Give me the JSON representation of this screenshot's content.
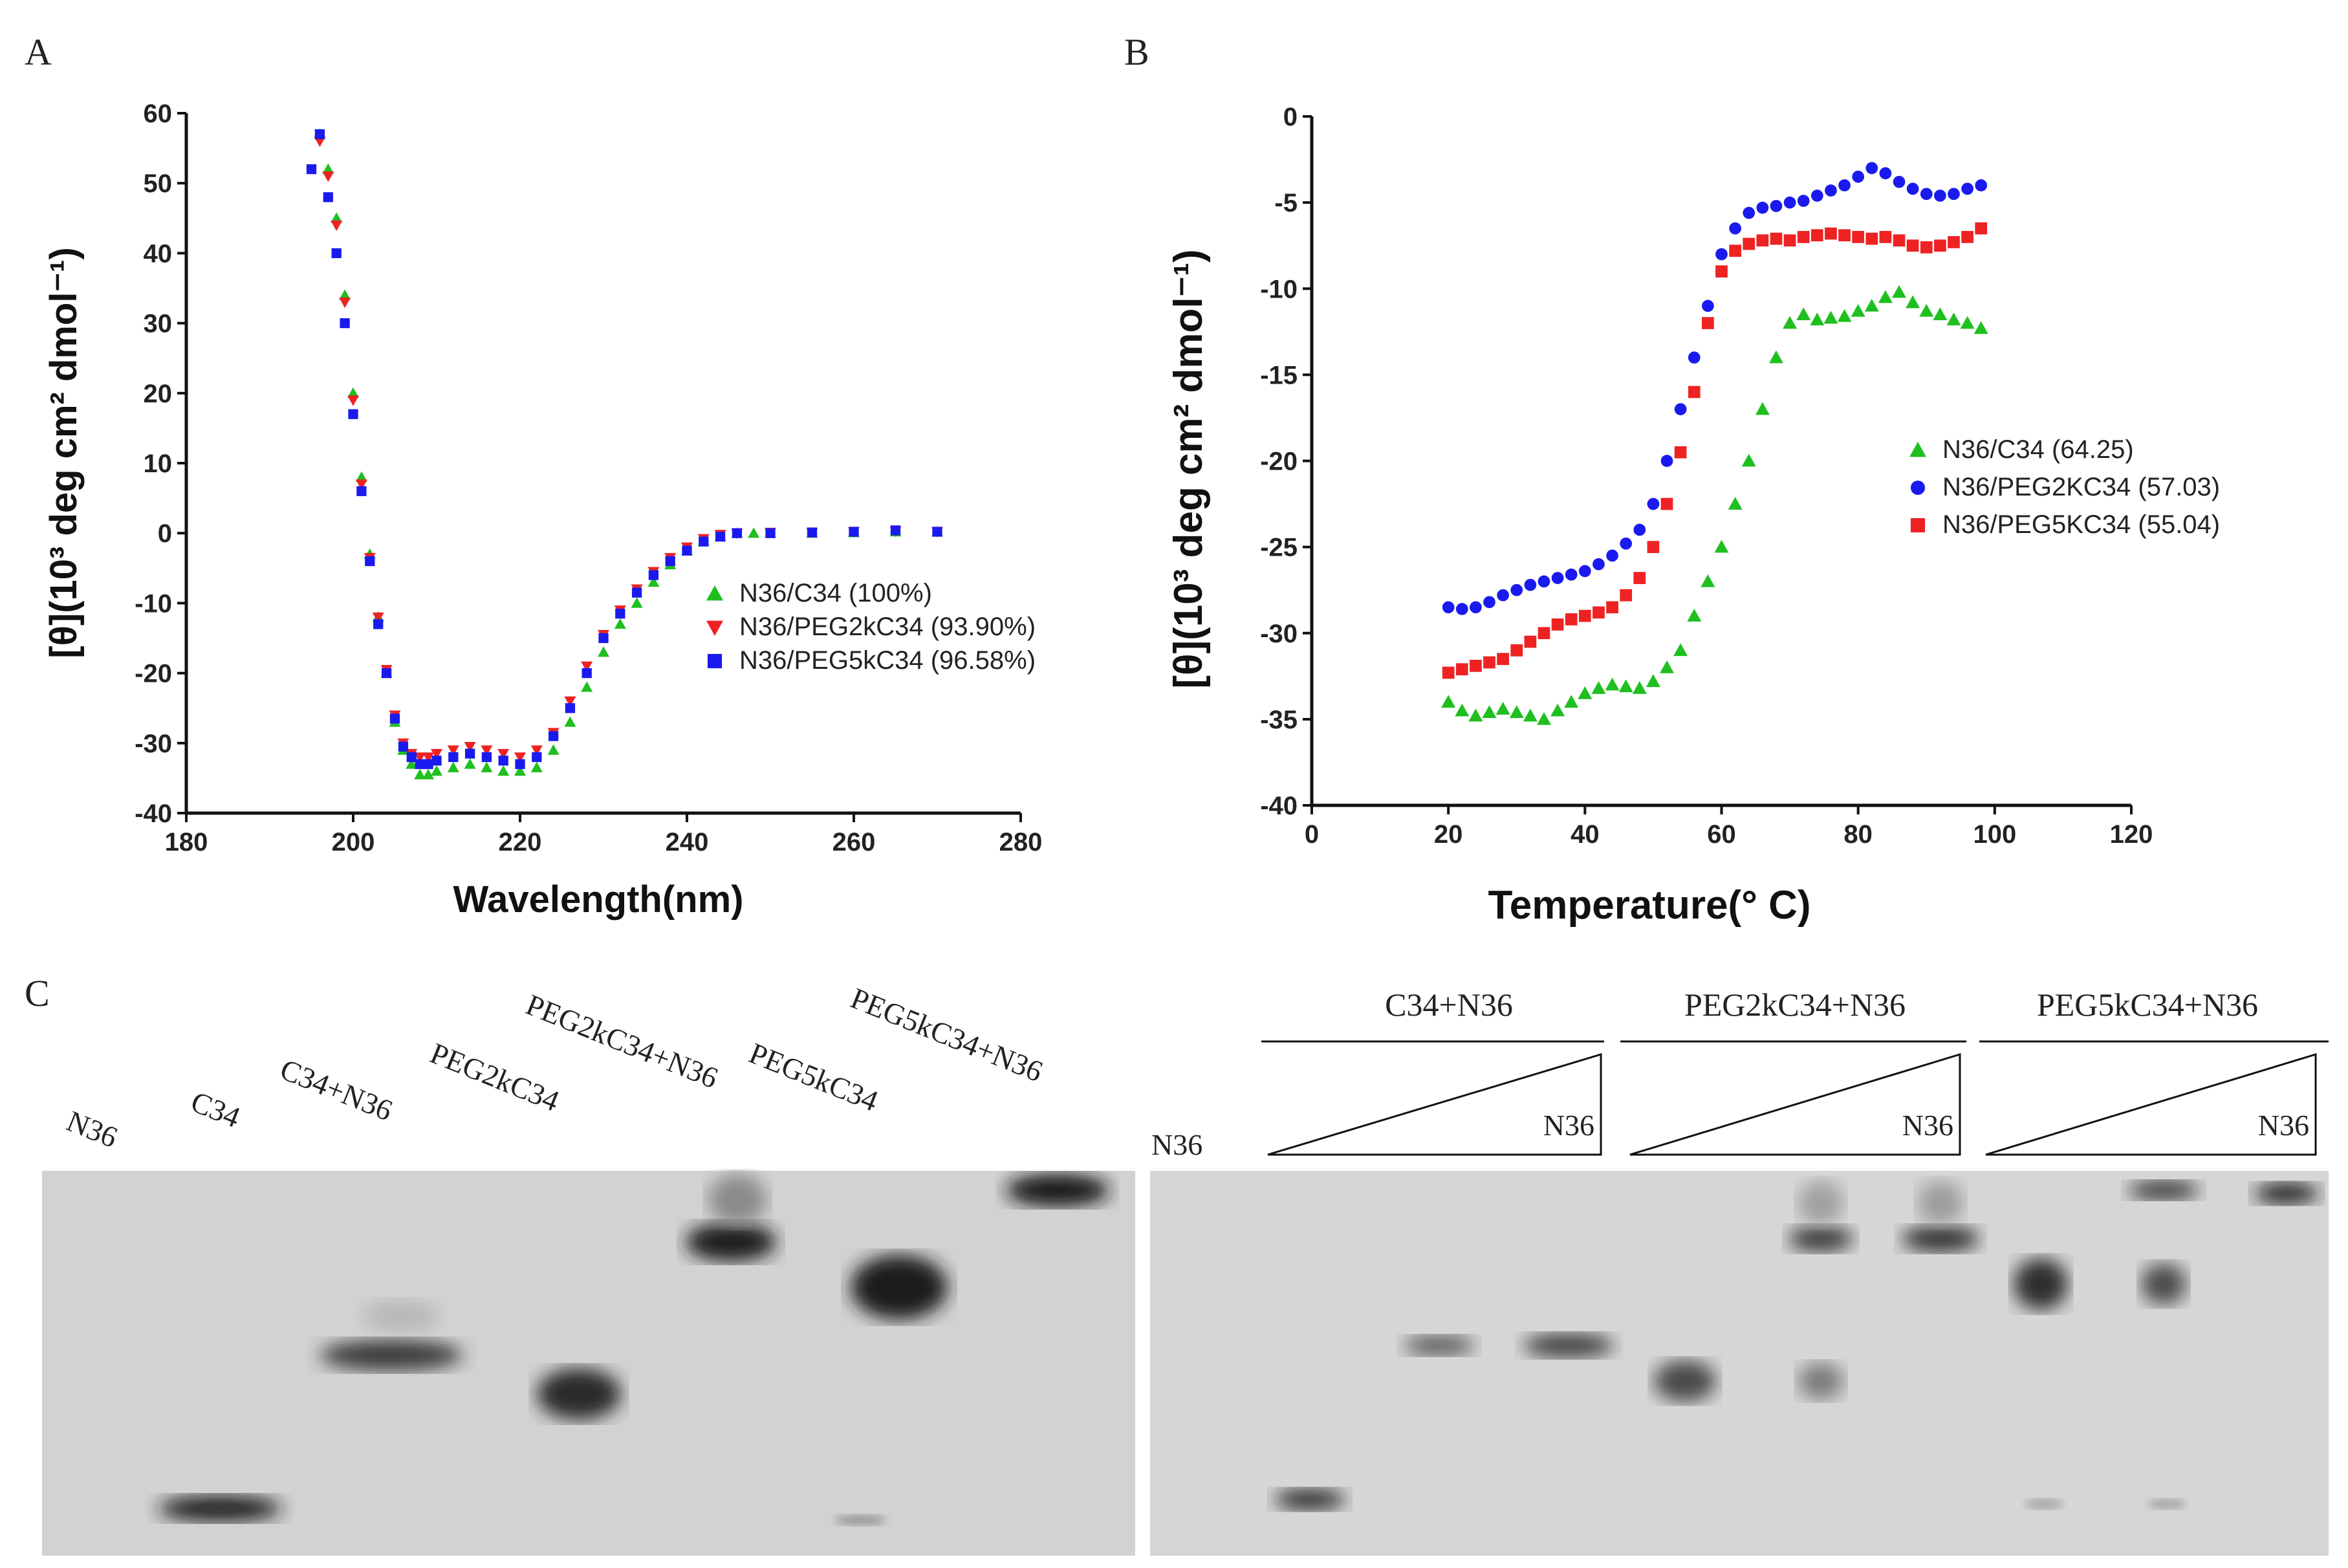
{
  "colors": {
    "green": "#1fbf1f",
    "red": "#ee2222",
    "blue": "#1a1aee",
    "axis": "#111111"
  },
  "panels": {
    "a": "A",
    "b": "B",
    "c": "C"
  },
  "chart_data": [
    {
      "type": "scatter",
      "id": "A",
      "xlabel": "Wavelength(nm)",
      "ylabel": "[θ](10³ deg cm² dmol⁻¹)",
      "xlim": [
        180,
        280
      ],
      "ylim": [
        -40,
        60
      ],
      "xticks": [
        180,
        200,
        220,
        240,
        260,
        280
      ],
      "yticks": [
        -40,
        -30,
        -20,
        -10,
        0,
        10,
        20,
        30,
        40,
        50,
        60
      ],
      "legend_position": "center-right",
      "series": [
        {
          "name": "N36/C34 (100%)",
          "color": "#1fbf1f",
          "marker": "triangle-up",
          "points": [
            [
              196,
              57
            ],
            [
              197,
              52
            ],
            [
              198,
              45
            ],
            [
              199,
              34
            ],
            [
              200,
              20
            ],
            [
              201,
              8
            ],
            [
              202,
              -3
            ],
            [
              203,
              -12
            ],
            [
              204,
              -20
            ],
            [
              205,
              -27
            ],
            [
              206,
              -31
            ],
            [
              207,
              -33
            ],
            [
              208,
              -34.5
            ],
            [
              209,
              -34.5
            ],
            [
              210,
              -34
            ],
            [
              212,
              -33.5
            ],
            [
              214,
              -33
            ],
            [
              216,
              -33.5
            ],
            [
              218,
              -34
            ],
            [
              220,
              -34
            ],
            [
              222,
              -33.5
            ],
            [
              224,
              -31
            ],
            [
              226,
              -27
            ],
            [
              228,
              -22
            ],
            [
              230,
              -17
            ],
            [
              232,
              -13
            ],
            [
              234,
              -10
            ],
            [
              236,
              -7
            ],
            [
              238,
              -4.5
            ],
            [
              240,
              -2.5
            ],
            [
              242,
              -1.2
            ],
            [
              244,
              -0.5
            ],
            [
              246,
              0
            ],
            [
              248,
              0
            ],
            [
              250,
              0
            ],
            [
              255,
              0
            ],
            [
              260,
              0.1
            ],
            [
              265,
              0.2
            ],
            [
              270,
              0.2
            ]
          ]
        },
        {
          "name": "N36/PEG2kC34 (93.90%)",
          "color": "#ee2222",
          "marker": "triangle-down",
          "points": [
            [
              196,
              56
            ],
            [
              197,
              51
            ],
            [
              198,
              44
            ],
            [
              199,
              33
            ],
            [
              200,
              19
            ],
            [
              201,
              7
            ],
            [
              202,
              -3.5
            ],
            [
              203,
              -12
            ],
            [
              204,
              -19.5
            ],
            [
              205,
              -26
            ],
            [
              206,
              -30
            ],
            [
              207,
              -31.5
            ],
            [
              208,
              -32
            ],
            [
              209,
              -32
            ],
            [
              210,
              -31.5
            ],
            [
              212,
              -31
            ],
            [
              214,
              -30.5
            ],
            [
              216,
              -31
            ],
            [
              218,
              -31.5
            ],
            [
              220,
              -32
            ],
            [
              222,
              -31
            ],
            [
              224,
              -28.5
            ],
            [
              226,
              -24
            ],
            [
              228,
              -19
            ],
            [
              230,
              -14.5
            ],
            [
              232,
              -11
            ],
            [
              234,
              -8
            ],
            [
              236,
              -5.5
            ],
            [
              238,
              -3.5
            ],
            [
              240,
              -2
            ],
            [
              242,
              -0.8
            ],
            [
              244,
              -0.2
            ],
            [
              246,
              0
            ],
            [
              250,
              0.1
            ],
            [
              255,
              0.1
            ],
            [
              260,
              0.2
            ],
            [
              265,
              0.3
            ],
            [
              270,
              0.2
            ]
          ]
        },
        {
          "name": "N36/PEG5kC34 (96.58%)",
          "color": "#1a1aee",
          "marker": "square",
          "points": [
            [
              195,
              52
            ],
            [
              196,
              57
            ],
            [
              197,
              48
            ],
            [
              198,
              40
            ],
            [
              199,
              30
            ],
            [
              200,
              17
            ],
            [
              201,
              6
            ],
            [
              202,
              -4
            ],
            [
              203,
              -13
            ],
            [
              204,
              -20
            ],
            [
              205,
              -26.5
            ],
            [
              206,
              -30.5
            ],
            [
              207,
              -32
            ],
            [
              208,
              -33
            ],
            [
              209,
              -33
            ],
            [
              210,
              -32.5
            ],
            [
              212,
              -32
            ],
            [
              214,
              -31.5
            ],
            [
              216,
              -32
            ],
            [
              218,
              -32.5
            ],
            [
              220,
              -33
            ],
            [
              222,
              -32
            ],
            [
              224,
              -29
            ],
            [
              226,
              -25
            ],
            [
              228,
              -20
            ],
            [
              230,
              -15
            ],
            [
              232,
              -11.5
            ],
            [
              234,
              -8.5
            ],
            [
              236,
              -6
            ],
            [
              238,
              -4
            ],
            [
              240,
              -2.5
            ],
            [
              242,
              -1.2
            ],
            [
              244,
              -0.5
            ],
            [
              246,
              0
            ],
            [
              250,
              0
            ],
            [
              255,
              0.1
            ],
            [
              260,
              0.2
            ],
            [
              265,
              0.4
            ],
            [
              270,
              0.2
            ]
          ]
        }
      ]
    },
    {
      "type": "scatter",
      "id": "B",
      "xlabel": "Temperature(° C)",
      "ylabel": "[θ](10³ deg cm² dmol⁻¹)",
      "xlim": [
        0,
        120
      ],
      "ylim": [
        -40,
        0
      ],
      "xticks": [
        0,
        20,
        40,
        60,
        80,
        100,
        120
      ],
      "yticks": [
        -40,
        -35,
        -30,
        -25,
        -20,
        -15,
        -10,
        -5,
        0
      ],
      "legend_position": "center-right",
      "series": [
        {
          "name": "N36/C34 (64.25)",
          "color": "#1fbf1f",
          "marker": "triangle-up",
          "points": [
            [
              20,
              -34
            ],
            [
              22,
              -34.5
            ],
            [
              24,
              -34.8
            ],
            [
              26,
              -34.6
            ],
            [
              28,
              -34.4
            ],
            [
              30,
              -34.6
            ],
            [
              32,
              -34.8
            ],
            [
              34,
              -35
            ],
            [
              36,
              -34.5
            ],
            [
              38,
              -34
            ],
            [
              40,
              -33.5
            ],
            [
              42,
              -33.2
            ],
            [
              44,
              -33
            ],
            [
              46,
              -33.1
            ],
            [
              48,
              -33.2
            ],
            [
              50,
              -32.8
            ],
            [
              52,
              -32
            ],
            [
              54,
              -31
            ],
            [
              56,
              -29
            ],
            [
              58,
              -27
            ],
            [
              60,
              -25
            ],
            [
              62,
              -22.5
            ],
            [
              64,
              -20
            ],
            [
              66,
              -17
            ],
            [
              68,
              -14
            ],
            [
              70,
              -12
            ],
            [
              72,
              -11.5
            ],
            [
              74,
              -11.8
            ],
            [
              76,
              -11.7
            ],
            [
              78,
              -11.6
            ],
            [
              80,
              -11.3
            ],
            [
              82,
              -11
            ],
            [
              84,
              -10.5
            ],
            [
              86,
              -10.2
            ],
            [
              88,
              -10.8
            ],
            [
              90,
              -11.3
            ],
            [
              92,
              -11.5
            ],
            [
              94,
              -11.8
            ],
            [
              96,
              -12
            ],
            [
              98,
              -12.3
            ]
          ]
        },
        {
          "name": "N36/PEG2KC34 (57.03)",
          "color": "#1a1aee",
          "marker": "circle",
          "points": [
            [
              20,
              -28.5
            ],
            [
              22,
              -28.6
            ],
            [
              24,
              -28.5
            ],
            [
              26,
              -28.2
            ],
            [
              28,
              -27.8
            ],
            [
              30,
              -27.5
            ],
            [
              32,
              -27.2
            ],
            [
              34,
              -27
            ],
            [
              36,
              -26.8
            ],
            [
              38,
              -26.6
            ],
            [
              40,
              -26.4
            ],
            [
              42,
              -26
            ],
            [
              44,
              -25.5
            ],
            [
              46,
              -24.8
            ],
            [
              48,
              -24
            ],
            [
              50,
              -22.5
            ],
            [
              52,
              -20
            ],
            [
              54,
              -17
            ],
            [
              56,
              -14
            ],
            [
              58,
              -11
            ],
            [
              60,
              -8
            ],
            [
              62,
              -6.5
            ],
            [
              64,
              -5.6
            ],
            [
              66,
              -5.3
            ],
            [
              68,
              -5.2
            ],
            [
              70,
              -5
            ],
            [
              72,
              -4.9
            ],
            [
              74,
              -4.6
            ],
            [
              76,
              -4.3
            ],
            [
              78,
              -4
            ],
            [
              80,
              -3.5
            ],
            [
              82,
              -3
            ],
            [
              84,
              -3.3
            ],
            [
              86,
              -3.8
            ],
            [
              88,
              -4.2
            ],
            [
              90,
              -4.5
            ],
            [
              92,
              -4.6
            ],
            [
              94,
              -4.5
            ],
            [
              96,
              -4.2
            ],
            [
              98,
              -4
            ]
          ]
        },
        {
          "name": "N36/PEG5KC34 (55.04)",
          "color": "#ee2222",
          "marker": "square",
          "points": [
            [
              20,
              -32.3
            ],
            [
              22,
              -32.1
            ],
            [
              24,
              -31.9
            ],
            [
              26,
              -31.7
            ],
            [
              28,
              -31.5
            ],
            [
              30,
              -31
            ],
            [
              32,
              -30.5
            ],
            [
              34,
              -30
            ],
            [
              36,
              -29.5
            ],
            [
              38,
              -29.2
            ],
            [
              40,
              -29
            ],
            [
              42,
              -28.8
            ],
            [
              44,
              -28.5
            ],
            [
              46,
              -27.8
            ],
            [
              48,
              -26.8
            ],
            [
              50,
              -25
            ],
            [
              52,
              -22.5
            ],
            [
              54,
              -19.5
            ],
            [
              56,
              -16
            ],
            [
              58,
              -12
            ],
            [
              60,
              -9
            ],
            [
              62,
              -7.8
            ],
            [
              64,
              -7.4
            ],
            [
              66,
              -7.2
            ],
            [
              68,
              -7.1
            ],
            [
              70,
              -7.2
            ],
            [
              72,
              -7
            ],
            [
              74,
              -6.9
            ],
            [
              76,
              -6.8
            ],
            [
              78,
              -6.9
            ],
            [
              80,
              -7
            ],
            [
              82,
              -7.1
            ],
            [
              84,
              -7
            ],
            [
              86,
              -7.2
            ],
            [
              88,
              -7.5
            ],
            [
              90,
              -7.6
            ],
            [
              92,
              -7.5
            ],
            [
              94,
              -7.3
            ],
            [
              96,
              -7
            ],
            [
              98,
              -6.5
            ]
          ]
        }
      ]
    }
  ],
  "gel_left": {
    "lanes": [
      "N36",
      "C34",
      "C34+N36",
      "PEG2kC34",
      "PEG2kC34+N36",
      "PEG5kC34",
      "PEG5kC34+N36"
    ]
  },
  "gel_right": {
    "single_lane": "N36",
    "groups": [
      {
        "title": "C34+N36",
        "gradient_label": "N36"
      },
      {
        "title": "PEG2kC34+N36",
        "gradient_label": "N36"
      },
      {
        "title": "PEG5kC34+N36",
        "gradient_label": "N36"
      }
    ]
  }
}
